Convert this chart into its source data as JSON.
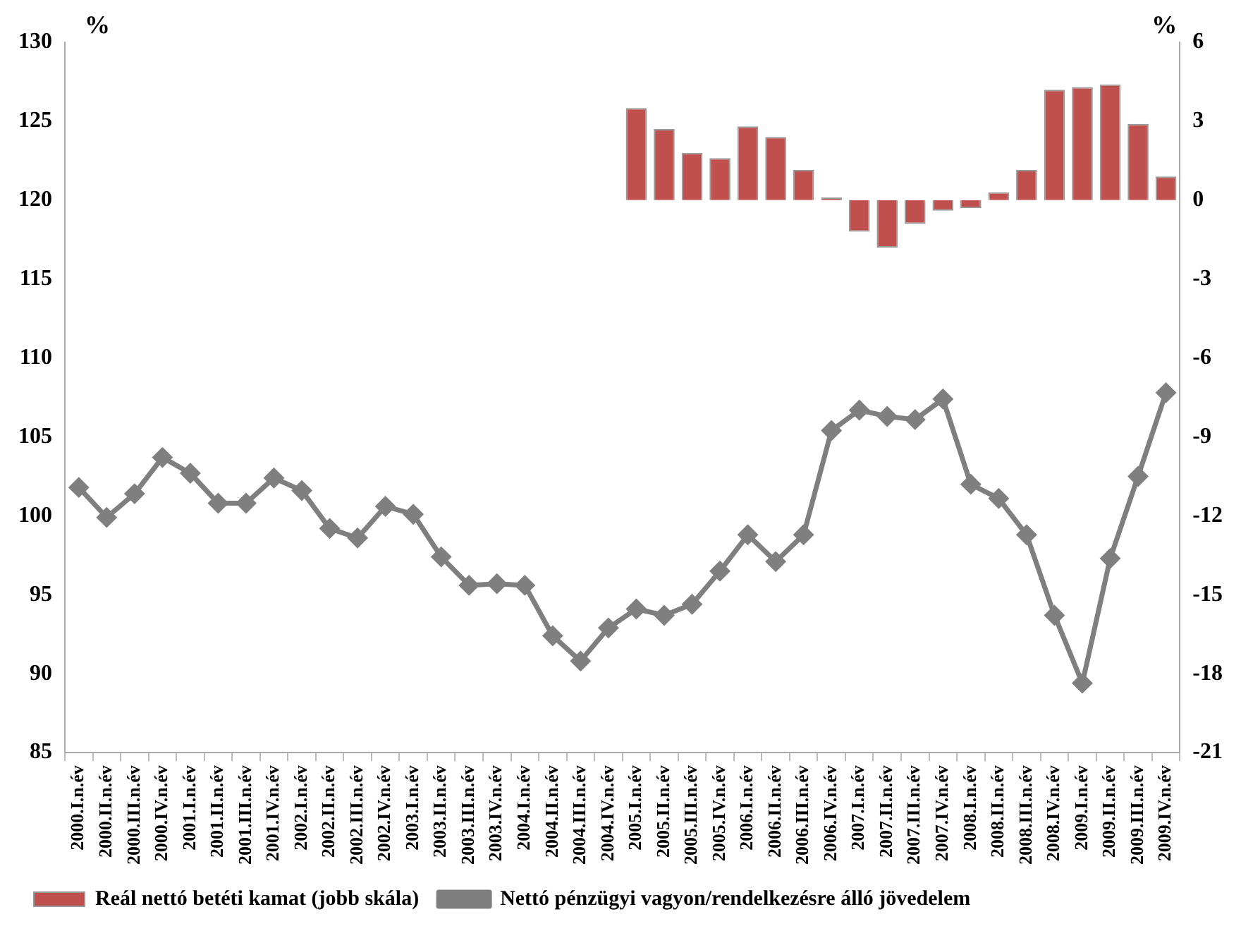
{
  "chart_data": {
    "type": "line",
    "ylabel": "%",
    "y2label": "%",
    "categories": [
      "2000.I.n.év",
      "2000.II.n.év",
      "2000.III.n.év",
      "2000.IV.n.év",
      "2001.I.n.év",
      "2001.II.n.év",
      "2001.III.n.év",
      "2001.IV.n.év",
      "2002.I.n.év",
      "2002.II.n.év",
      "2002.III.n.év",
      "2002.IV.n.év",
      "2003.I.n.év",
      "2003.II.n.év",
      "2003.III.n.év",
      "2003.IV.n.év",
      "2004.I.n.év",
      "2004.II.n.év",
      "2004.III.n.év",
      "2004.IV.n.év",
      "2005.I.n.év",
      "2005.II.n.év",
      "2005.III.n.év",
      "2005.IV.n.év",
      "2006.I.n.év",
      "2006.II.n.év",
      "2006.III.n.év",
      "2006.IV.n.év",
      "2007.I.n.év",
      "2007.II.n.év",
      "2007.III.n.év",
      "2007.IV.n.év",
      "2008.I.n.év",
      "2008.II.n.év",
      "2008.III.n.év",
      "2008.IV.n.év",
      "2009.I.n.év",
      "2009.II.n.év",
      "2009.III.n.év",
      "2009.IV.n.év"
    ],
    "series": [
      {
        "name": "Reál nettó betéti kamat (jobb skála)",
        "type": "bar",
        "axis": "y2",
        "color": "#c0504d",
        "values": [
          null,
          null,
          null,
          null,
          null,
          null,
          null,
          null,
          null,
          null,
          null,
          null,
          null,
          null,
          null,
          null,
          null,
          null,
          null,
          null,
          3.5,
          2.7,
          1.8,
          1.6,
          2.8,
          2.4,
          1.15,
          0.1,
          -1.2,
          -1.8,
          -0.9,
          -0.4,
          -0.3,
          0.3,
          1.15,
          4.2,
          4.3,
          4.4,
          2.9,
          0.9
        ]
      },
      {
        "name": "Nettó pénzügyi vagyon/rendelkezésre álló jövedelem",
        "color": "#7f7f7f",
        "values": [
          101.8,
          99.9,
          101.4,
          103.7,
          102.7,
          100.8,
          100.8,
          102.4,
          101.6,
          99.2,
          98.6,
          100.6,
          100.1,
          97.4,
          95.6,
          95.7,
          95.6,
          92.4,
          90.8,
          92.9,
          94.1,
          93.7,
          94.4,
          96.5,
          98.8,
          97.1,
          98.8,
          105.4,
          106.7,
          106.3,
          106.1,
          107.4,
          102.0,
          101.1,
          98.8,
          93.7,
          89.4,
          97.3,
          102.5,
          107.8
        ]
      }
    ],
    "ylim": [
      85,
      130
    ],
    "yticks": [
      85,
      90,
      95,
      100,
      105,
      110,
      115,
      120,
      125,
      130
    ],
    "y2lim": [
      -21,
      6
    ],
    "y2ticks": [
      -21,
      -18,
      -15,
      -12,
      -9,
      -6,
      -3,
      0,
      3,
      6
    ],
    "marker": "diamond",
    "legend": "bottom",
    "grid": false
  }
}
